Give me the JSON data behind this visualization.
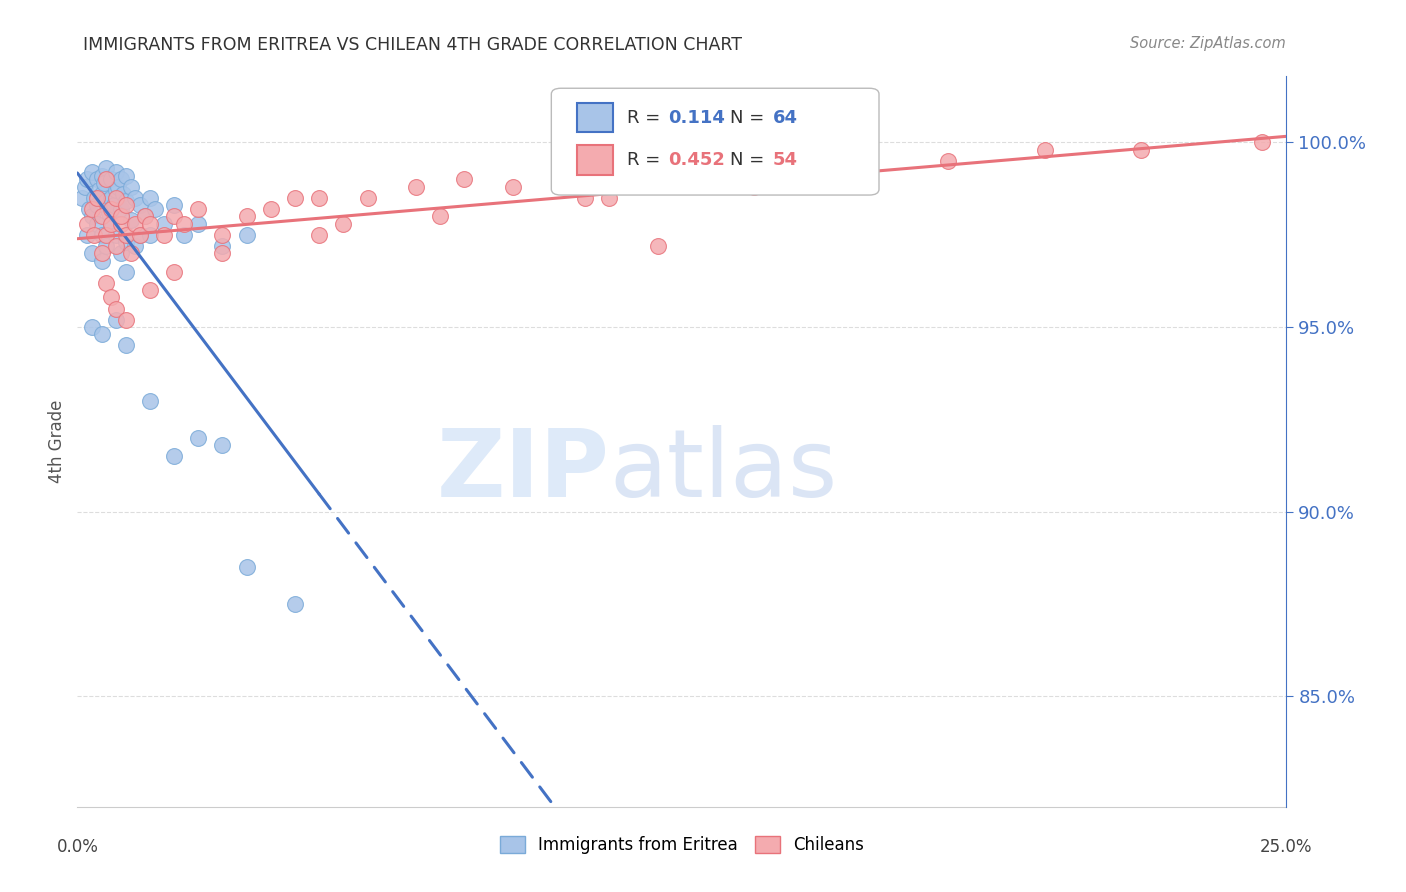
{
  "title": "IMMIGRANTS FROM ERITREA VS CHILEAN 4TH GRADE CORRELATION CHART",
  "source": "Source: ZipAtlas.com",
  "ylabel": "4th Grade",
  "ytick_values": [
    85.0,
    90.0,
    95.0,
    100.0
  ],
  "xmin": 0.0,
  "xmax": 25.0,
  "ymin": 82.0,
  "ymax": 101.8,
  "legend_r_blue": "0.114",
  "legend_n_blue": "64",
  "legend_r_pink": "0.452",
  "legend_n_pink": "54",
  "legend_label_blue": "Immigrants from Eritrea",
  "legend_label_pink": "Chileans",
  "blue_line_color": "#4472C4",
  "pink_line_color": "#E8727A",
  "blue_dot_facecolor": "#A8C4E8",
  "pink_dot_facecolor": "#F4ABAF",
  "blue_dot_edgecolor": "#7AAAD8",
  "pink_dot_edgecolor": "#E8727A",
  "watermark_zip_color": "#C8DCF5",
  "watermark_atlas_color": "#B8CCEC"
}
